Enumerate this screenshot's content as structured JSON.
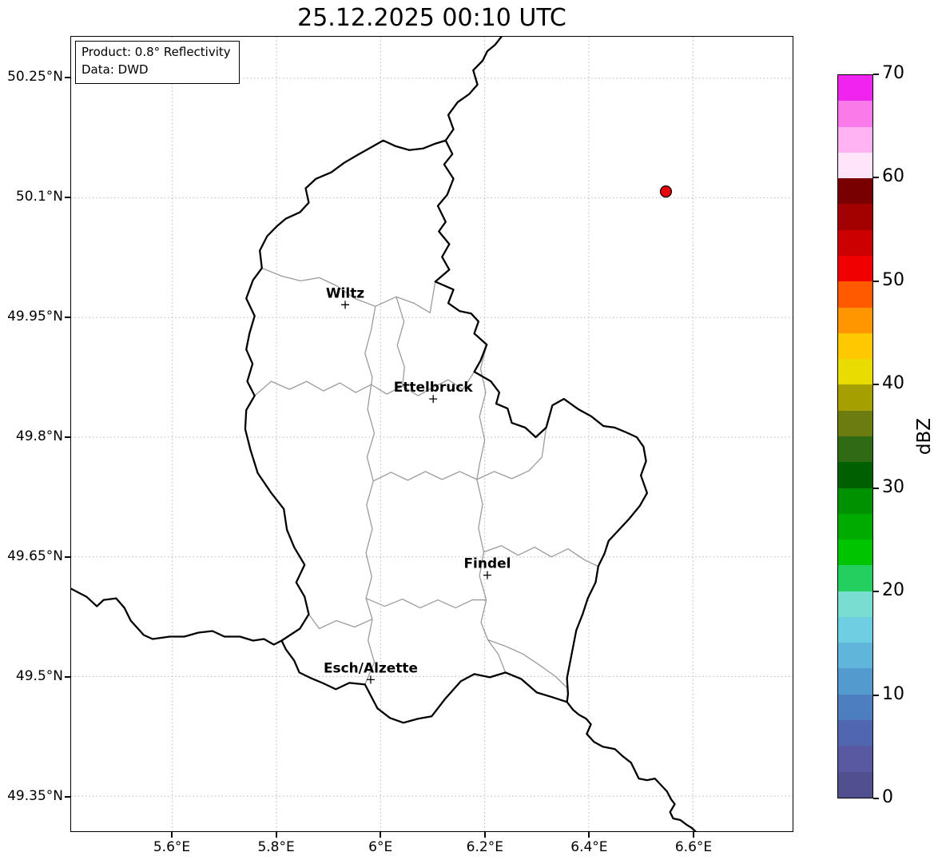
{
  "title": "25.12.2025 00:10 UTC",
  "info_box": {
    "line1": "Product: 0.8° Reflectivity",
    "line2": "Data: DWD"
  },
  "axes": {
    "lon_ticks": [
      {
        "label": "5.6°E",
        "value": 5.6
      },
      {
        "label": "5.8°E",
        "value": 5.8
      },
      {
        "label": "6°E",
        "value": 6.0
      },
      {
        "label": "6.2°E",
        "value": 6.2
      },
      {
        "label": "6.4°E",
        "value": 6.4
      },
      {
        "label": "6.6°E",
        "value": 6.6
      }
    ],
    "lat_ticks": [
      {
        "label": "50.25°N",
        "value": 50.25
      },
      {
        "label": "50.1°N",
        "value": 50.1
      },
      {
        "label": "49.95°N",
        "value": 49.95
      },
      {
        "label": "49.8°N",
        "value": 49.8
      },
      {
        "label": "49.65°N",
        "value": 49.65
      },
      {
        "label": "49.5°N",
        "value": 49.5
      },
      {
        "label": "49.35°N",
        "value": 49.35
      }
    ]
  },
  "colorbar": {
    "label": "dBZ",
    "vmin": 0,
    "vmax": 70,
    "ticks": [
      0,
      10,
      20,
      30,
      40,
      50,
      60,
      70
    ],
    "colors": [
      "#50508f",
      "#5959a2",
      "#5066ae",
      "#4d7ebe",
      "#539ace",
      "#5fb5da",
      "#6fcfe2",
      "#79ddd2",
      "#23cf5e",
      "#00c400",
      "#00ab00",
      "#009100",
      "#006000",
      "#2f6b14",
      "#6d7c10",
      "#a5a000",
      "#e8dc00",
      "#ffc800",
      "#ff9600",
      "#ff5a00",
      "#f00000",
      "#cd0000",
      "#a30000",
      "#780000",
      "#ffe4fa",
      "#ffb3f2",
      "#fb7ae9",
      "#ef24ef"
    ]
  },
  "map": {
    "cities": [
      {
        "name": "Wiltz",
        "lon": 5.932,
        "lat": 49.966
      },
      {
        "name": "Ettelbruck",
        "lon": 6.101,
        "lat": 49.848
      },
      {
        "name": "Findel",
        "lon": 6.205,
        "lat": 49.627
      },
      {
        "name": "Esch/Alzette",
        "lon": 5.981,
        "lat": 49.496
      }
    ],
    "radar_marker": {
      "lon": 6.548,
      "lat": 50.108,
      "fill": "#e8000b"
    },
    "borders": {
      "luxembourg": [
        [
          6.125,
          50.172
        ],
        [
          6.138,
          50.155
        ],
        [
          6.122,
          50.142
        ],
        [
          6.14,
          50.124
        ],
        [
          6.128,
          50.104
        ],
        [
          6.11,
          50.09
        ],
        [
          6.125,
          50.07
        ],
        [
          6.112,
          50.058
        ],
        [
          6.132,
          50.042
        ],
        [
          6.118,
          50.026
        ],
        [
          6.132,
          50.01
        ],
        [
          6.105,
          49.995
        ],
        [
          6.14,
          49.985
        ],
        [
          6.13,
          49.968
        ],
        [
          6.152,
          49.958
        ],
        [
          6.174,
          49.955
        ],
        [
          6.188,
          49.945
        ],
        [
          6.18,
          49.93
        ],
        [
          6.204,
          49.916
        ],
        [
          6.192,
          49.896
        ],
        [
          6.18,
          49.882
        ],
        [
          6.212,
          49.87
        ],
        [
          6.228,
          49.856
        ],
        [
          6.222,
          49.842
        ],
        [
          6.244,
          49.836
        ],
        [
          6.252,
          49.818
        ],
        [
          6.278,
          49.812
        ],
        [
          6.298,
          49.8
        ],
        [
          6.318,
          49.812
        ],
        [
          6.33,
          49.84
        ],
        [
          6.352,
          49.848
        ],
        [
          6.38,
          49.835
        ],
        [
          6.405,
          49.826
        ],
        [
          6.428,
          49.814
        ],
        [
          6.45,
          49.812
        ],
        [
          6.472,
          49.806
        ],
        [
          6.492,
          49.8
        ],
        [
          6.505,
          49.788
        ],
        [
          6.51,
          49.77
        ],
        [
          6.5,
          49.752
        ],
        [
          6.512,
          49.73
        ],
        [
          6.498,
          49.714
        ],
        [
          6.478,
          49.698
        ],
        [
          6.458,
          49.684
        ],
        [
          6.438,
          49.67
        ],
        [
          6.43,
          49.654
        ],
        [
          6.418,
          49.638
        ],
        [
          6.413,
          49.618
        ],
        [
          6.398,
          49.598
        ],
        [
          6.388,
          49.578
        ],
        [
          6.376,
          49.558
        ],
        [
          6.37,
          49.538
        ],
        [
          6.364,
          49.518
        ],
        [
          6.358,
          49.498
        ],
        [
          6.36,
          49.478
        ],
        [
          6.358,
          49.468
        ],
        [
          6.33,
          49.474
        ],
        [
          6.3,
          49.48
        ],
        [
          6.27,
          49.497
        ],
        [
          6.24,
          49.505
        ],
        [
          6.21,
          49.499
        ],
        [
          6.18,
          49.503
        ],
        [
          6.154,
          49.494
        ],
        [
          6.124,
          49.472
        ],
        [
          6.098,
          49.45
        ],
        [
          6.072,
          49.447
        ],
        [
          6.044,
          49.442
        ],
        [
          6.018,
          49.448
        ],
        [
          5.994,
          49.46
        ],
        [
          5.97,
          49.49
        ],
        [
          5.94,
          49.492
        ],
        [
          5.914,
          49.484
        ],
        [
          5.888,
          49.492
        ],
        [
          5.866,
          49.498
        ],
        [
          5.844,
          49.505
        ],
        [
          5.834,
          49.52
        ],
        [
          5.818,
          49.534
        ],
        [
          5.81,
          49.545
        ],
        [
          5.845,
          49.56
        ],
        [
          5.862,
          49.578
        ],
        [
          5.854,
          49.6
        ],
        [
          5.838,
          49.618
        ],
        [
          5.854,
          49.64
        ],
        [
          5.834,
          49.662
        ],
        [
          5.82,
          49.684
        ],
        [
          5.814,
          49.71
        ],
        [
          5.79,
          49.73
        ],
        [
          5.764,
          49.755
        ],
        [
          5.75,
          49.784
        ],
        [
          5.74,
          49.81
        ],
        [
          5.742,
          49.834
        ],
        [
          5.758,
          49.852
        ],
        [
          5.744,
          49.87
        ],
        [
          5.754,
          49.892
        ],
        [
          5.742,
          49.91
        ],
        [
          5.748,
          49.93
        ],
        [
          5.758,
          49.952
        ],
        [
          5.742,
          49.974
        ],
        [
          5.755,
          49.997
        ],
        [
          5.772,
          50.012
        ],
        [
          5.768,
          50.034
        ],
        [
          5.782,
          50.052
        ],
        [
          5.8,
          50.064
        ],
        [
          5.818,
          50.074
        ],
        [
          5.845,
          50.082
        ],
        [
          5.862,
          50.094
        ],
        [
          5.856,
          50.112
        ],
        [
          5.876,
          50.124
        ],
        [
          5.905,
          50.132
        ],
        [
          5.93,
          50.144
        ],
        [
          5.956,
          50.154
        ],
        [
          5.978,
          50.162
        ],
        [
          6.005,
          50.172
        ],
        [
          6.028,
          50.165
        ],
        [
          6.055,
          50.16
        ],
        [
          6.082,
          50.162
        ],
        [
          6.105,
          50.168
        ],
        [
          6.125,
          50.172
        ]
      ],
      "belgium_germany": [
        [
          6.125,
          50.172
        ],
        [
          6.14,
          50.186
        ],
        [
          6.13,
          50.204
        ],
        [
          6.148,
          50.22
        ],
        [
          6.17,
          50.23
        ],
        [
          6.186,
          50.242
        ],
        [
          6.178,
          50.26
        ],
        [
          6.196,
          50.272
        ],
        [
          6.205,
          50.284
        ],
        [
          6.22,
          50.292
        ],
        [
          6.232,
          50.302
        ]
      ],
      "france_belgium": [
        [
          5.4055,
          49.61
        ],
        [
          5.435,
          49.6
        ],
        [
          5.455,
          49.588
        ],
        [
          5.468,
          49.596
        ],
        [
          5.492,
          49.598
        ],
        [
          5.508,
          49.586
        ],
        [
          5.52,
          49.57
        ],
        [
          5.545,
          49.552
        ],
        [
          5.562,
          49.547
        ],
        [
          5.595,
          49.55
        ],
        [
          5.623,
          49.55
        ],
        [
          5.65,
          49.555
        ],
        [
          5.677,
          49.557
        ],
        [
          5.7,
          49.55
        ],
        [
          5.73,
          49.55
        ],
        [
          5.755,
          49.545
        ],
        [
          5.776,
          49.547
        ],
        [
          5.795,
          49.54
        ],
        [
          5.81,
          49.545
        ]
      ],
      "france_germany": [
        [
          6.358,
          49.468
        ],
        [
          6.37,
          49.458
        ],
        [
          6.381,
          49.452
        ],
        [
          6.395,
          49.447
        ],
        [
          6.404,
          49.44
        ],
        [
          6.396,
          49.428
        ],
        [
          6.41,
          49.418
        ],
        [
          6.427,
          49.412
        ],
        [
          6.45,
          49.409
        ],
        [
          6.465,
          49.4
        ],
        [
          6.481,
          49.392
        ],
        [
          6.49,
          49.38
        ],
        [
          6.496,
          49.372
        ],
        [
          6.512,
          49.37
        ],
        [
          6.527,
          49.372
        ],
        [
          6.54,
          49.363
        ],
        [
          6.55,
          49.356
        ],
        [
          6.558,
          49.346
        ],
        [
          6.565,
          49.34
        ],
        [
          6.556,
          49.33
        ],
        [
          6.562,
          49.322
        ],
        [
          6.576,
          49.32
        ],
        [
          6.588,
          49.314
        ],
        [
          6.598,
          49.31
        ],
        [
          6.611,
          49.302
        ]
      ],
      "internal": [
        [
          [
            5.772,
            50.012
          ],
          [
            5.81,
            50.002
          ],
          [
            5.846,
            49.996
          ],
          [
            5.882,
            50.0
          ],
          [
            5.915,
            49.99
          ],
          [
            5.95,
            49.974
          ],
          [
            5.99,
            49.964
          ],
          [
            6.03,
            49.976
          ],
          [
            6.064,
            49.968
          ],
          [
            6.095,
            49.956
          ],
          [
            6.105,
            49.995
          ]
        ],
        [
          [
            5.758,
            49.852
          ],
          [
            5.79,
            49.87
          ],
          [
            5.825,
            49.86
          ],
          [
            5.858,
            49.87
          ],
          [
            5.89,
            49.858
          ],
          [
            5.922,
            49.868
          ],
          [
            5.952,
            49.856
          ],
          [
            5.982,
            49.866
          ],
          [
            6.012,
            49.854
          ],
          [
            6.042,
            49.864
          ],
          [
            6.072,
            49.852
          ],
          [
            6.1,
            49.862
          ],
          [
            6.13,
            49.872
          ],
          [
            6.158,
            49.86
          ],
          [
            6.18,
            49.882
          ]
        ],
        [
          [
            6.03,
            49.976
          ],
          [
            6.045,
            49.945
          ],
          [
            6.032,
            49.915
          ],
          [
            6.046,
            49.888
          ],
          [
            6.042,
            49.864
          ]
        ],
        [
          [
            5.99,
            49.964
          ],
          [
            5.982,
            49.935
          ],
          [
            5.97,
            49.905
          ],
          [
            5.984,
            49.875
          ],
          [
            5.982,
            49.866
          ],
          [
            5.975,
            49.835
          ],
          [
            5.988,
            49.805
          ],
          [
            5.974,
            49.775
          ],
          [
            5.986,
            49.745
          ],
          [
            5.973,
            49.715
          ],
          [
            5.984,
            49.685
          ],
          [
            5.972,
            49.655
          ],
          [
            5.983,
            49.625
          ],
          [
            5.972,
            49.598
          ],
          [
            5.984,
            49.572
          ],
          [
            5.976,
            49.545
          ],
          [
            5.988,
            49.518
          ],
          [
            5.97,
            49.49
          ]
        ],
        [
          [
            5.986,
            49.745
          ],
          [
            6.02,
            49.756
          ],
          [
            6.052,
            49.746
          ],
          [
            6.086,
            49.757
          ],
          [
            6.118,
            49.747
          ],
          [
            6.152,
            49.757
          ],
          [
            6.185,
            49.747
          ],
          [
            6.218,
            49.757
          ],
          [
            6.252,
            49.748
          ],
          [
            6.285,
            49.758
          ],
          [
            6.31,
            49.775
          ],
          [
            6.318,
            49.812
          ]
        ],
        [
          [
            6.204,
            49.916
          ],
          [
            6.192,
            49.886
          ],
          [
            6.202,
            49.856
          ],
          [
            6.19,
            49.826
          ],
          [
            6.2,
            49.796
          ],
          [
            6.19,
            49.766
          ],
          [
            6.185,
            49.747
          ],
          [
            6.196,
            49.716
          ],
          [
            6.188,
            49.686
          ],
          [
            6.198,
            49.656
          ],
          [
            6.19,
            49.626
          ],
          [
            6.203,
            49.596
          ],
          [
            6.193,
            49.568
          ],
          [
            6.206,
            49.546
          ],
          [
            6.226,
            49.528
          ],
          [
            6.24,
            49.505
          ]
        ],
        [
          [
            6.198,
            49.656
          ],
          [
            6.232,
            49.664
          ],
          [
            6.264,
            49.652
          ],
          [
            6.296,
            49.662
          ],
          [
            6.328,
            49.65
          ],
          [
            6.36,
            49.66
          ],
          [
            6.392,
            49.646
          ],
          [
            6.418,
            49.638
          ]
        ],
        [
          [
            5.972,
            49.598
          ],
          [
            6.008,
            49.588
          ],
          [
            6.042,
            49.597
          ],
          [
            6.076,
            49.586
          ],
          [
            6.11,
            49.596
          ],
          [
            6.144,
            49.586
          ],
          [
            6.176,
            49.596
          ],
          [
            6.203,
            49.596
          ]
        ],
        [
          [
            6.206,
            49.546
          ],
          [
            6.24,
            49.538
          ],
          [
            6.274,
            49.528
          ],
          [
            6.306,
            49.514
          ],
          [
            6.336,
            49.5
          ],
          [
            6.358,
            49.486
          ]
        ],
        [
          [
            5.984,
            49.572
          ],
          [
            5.95,
            49.562
          ],
          [
            5.915,
            49.57
          ],
          [
            5.882,
            49.56
          ],
          [
            5.862,
            49.578
          ]
        ]
      ]
    }
  }
}
